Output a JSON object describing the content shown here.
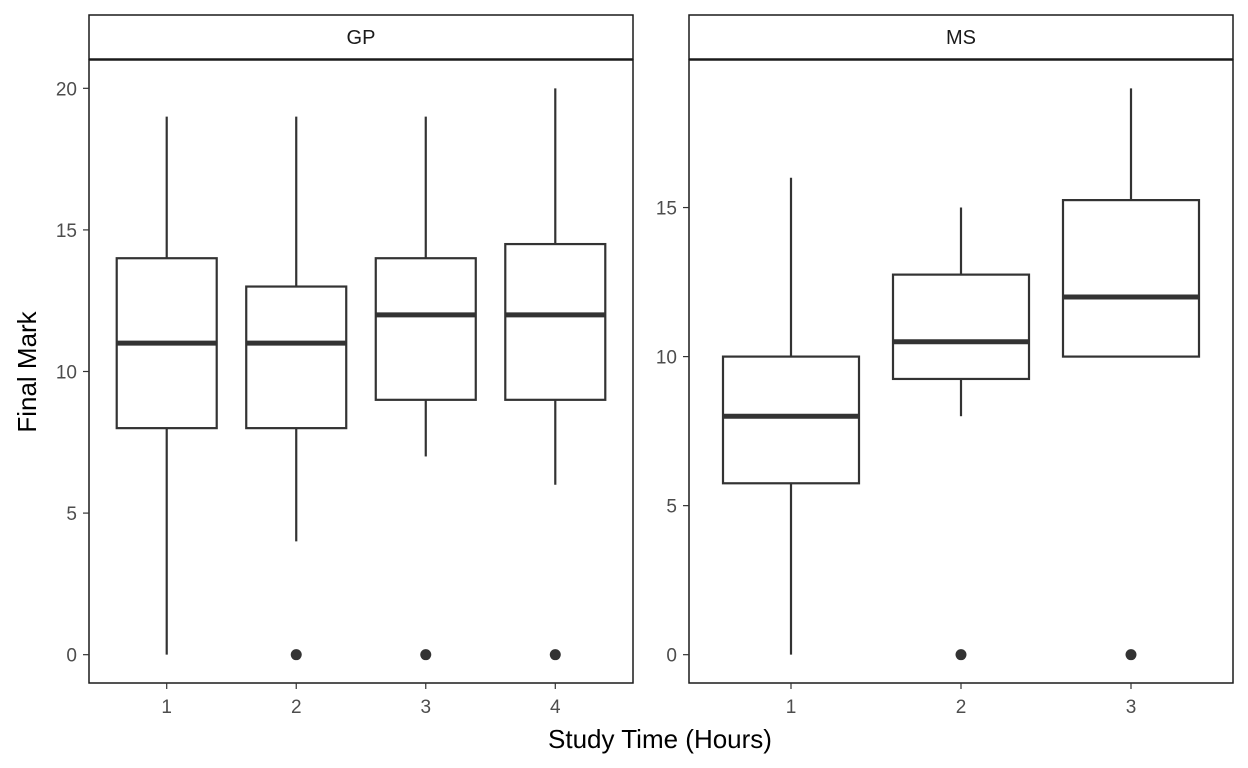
{
  "chart_data": {
    "type": "boxplot",
    "xlabel": "Study Time (Hours)",
    "ylabel": "Final Mark",
    "grid": false,
    "colors": {
      "line": "#333333",
      "fill": "#ffffff",
      "panel_border": "#1a1a1a"
    },
    "panels": [
      {
        "label": "GP",
        "categories": [
          "1",
          "2",
          "3",
          "4"
        ],
        "ylim": [
          -1.0,
          21.0
        ],
        "yticks": [
          "0",
          "5",
          "10",
          "15",
          "20"
        ],
        "boxes": [
          {
            "category": "1",
            "min": 0,
            "q1": 8,
            "median": 11,
            "q3": 14,
            "max": 19,
            "outliers": []
          },
          {
            "category": "2",
            "min": 4,
            "q1": 8,
            "median": 11,
            "q3": 13,
            "max": 19,
            "outliers": [
              0
            ]
          },
          {
            "category": "3",
            "min": 7,
            "q1": 9,
            "median": 12,
            "q3": 14,
            "max": 19,
            "outliers": [
              0
            ]
          },
          {
            "category": "4",
            "min": 6,
            "q1": 9,
            "median": 12,
            "q3": 14.5,
            "max": 20,
            "outliers": [
              0
            ]
          }
        ]
      },
      {
        "label": "MS",
        "categories": [
          "1",
          "2",
          "3"
        ],
        "ylim": [
          -0.95,
          19.95
        ],
        "yticks": [
          "0",
          "5",
          "10",
          "15"
        ],
        "boxes": [
          {
            "category": "1",
            "min": 0,
            "q1": 5.75,
            "median": 8,
            "q3": 10,
            "max": 16,
            "outliers": []
          },
          {
            "category": "2",
            "min": 8,
            "q1": 9.25,
            "median": 10.5,
            "q3": 12.75,
            "max": 15,
            "outliers": [
              0
            ]
          },
          {
            "category": "3",
            "min": 10,
            "q1": 10,
            "median": 12,
            "q3": 15.25,
            "max": 19,
            "outliers": [
              0
            ]
          }
        ]
      }
    ]
  }
}
